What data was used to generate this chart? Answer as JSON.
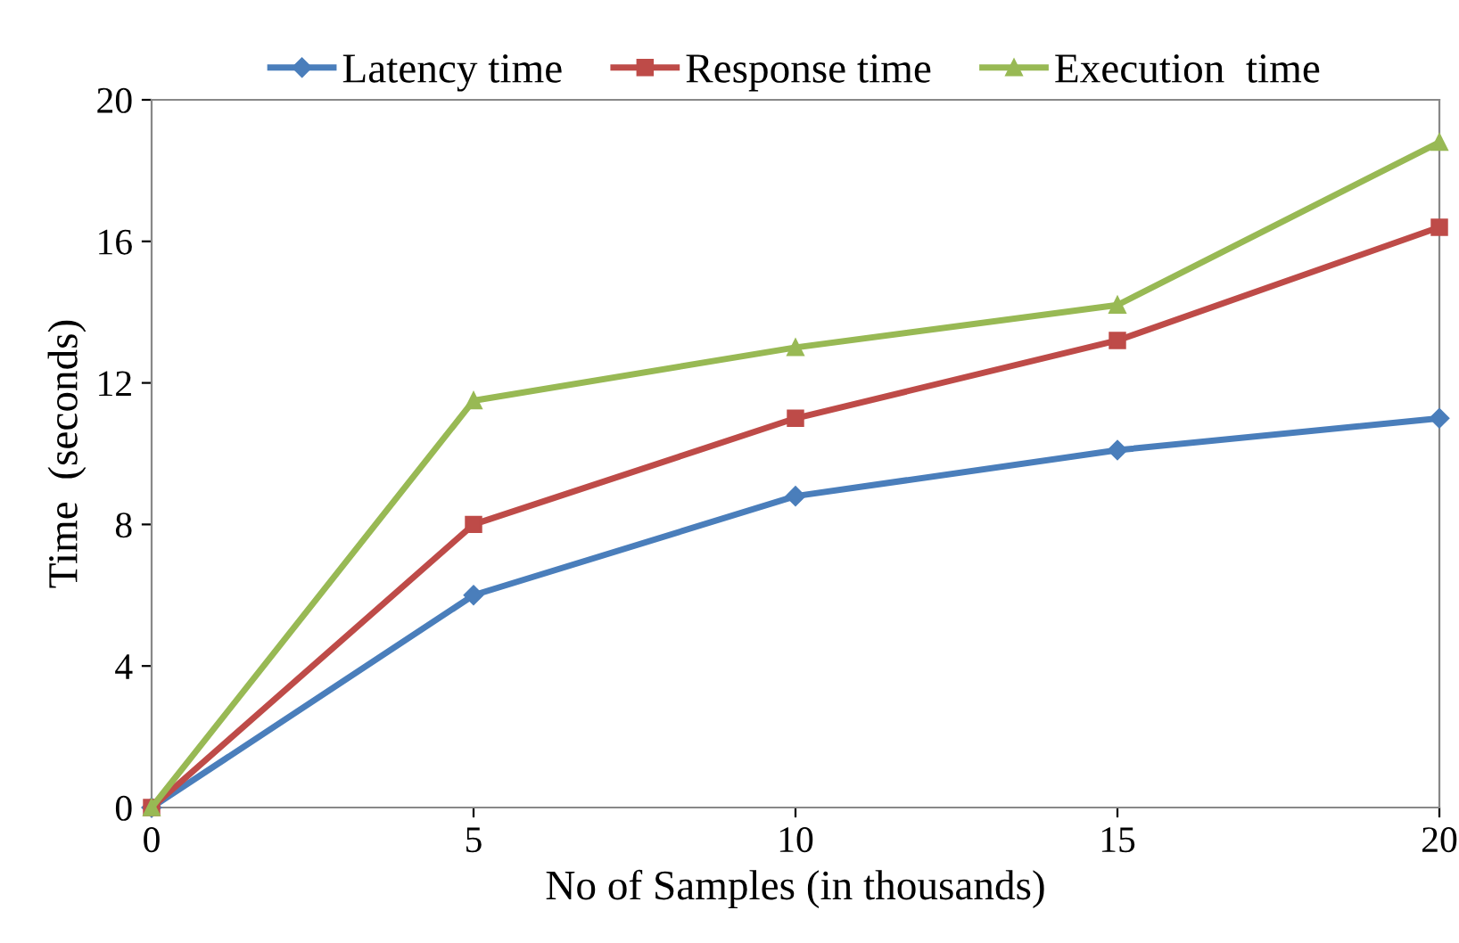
{
  "chart_data": {
    "type": "line",
    "xlabel": "No of Samples (in thousands)",
    "ylabel": "Time  (seconds)",
    "x": [
      0,
      5,
      10,
      15,
      20
    ],
    "series": [
      {
        "name": "Latency time",
        "color": "#4a7ebb",
        "marker": "diamond",
        "values": [
          0,
          6,
          8.8,
          10.1,
          11
        ]
      },
      {
        "name": "Response time",
        "color": "#be4b48",
        "marker": "square",
        "values": [
          0,
          8,
          11,
          13.2,
          16.4
        ]
      },
      {
        "name": "Execution  time",
        "color": "#98b954",
        "marker": "triangle",
        "values": [
          0,
          11.5,
          13,
          14.2,
          18.8
        ]
      }
    ],
    "xlim": [
      0,
      20
    ],
    "xticks": [
      0,
      5,
      10,
      15,
      20
    ],
    "ylim": [
      0,
      20
    ],
    "yticks": [
      0,
      4,
      8,
      12,
      16,
      20
    ],
    "grid": false,
    "legend": "top",
    "line_style": "solid"
  }
}
